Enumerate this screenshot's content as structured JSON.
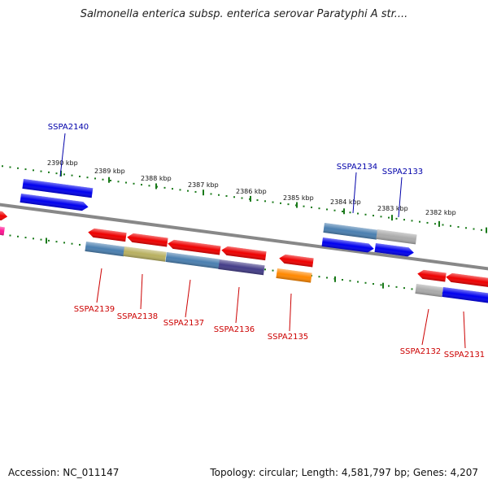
{
  "title": "Salmonella enterica subsp. enterica serovar Paratyphi A str....",
  "footer": {
    "accession": "Accession: NC_011147",
    "topology": "Topology: circular; Length: 4,581,797 bp; Genes: 4,207"
  },
  "colors": {
    "backbone": "#888888",
    "tick": "#1a7a1a",
    "label_forward": "#0000aa",
    "label_reverse": "#cc0000",
    "gene_blue": "#0000ee",
    "gene_red": "#ee0000",
    "gene_steel": "#4a7fb0",
    "gene_khaki": "#b8b060",
    "gene_gray": "#aaaaaa",
    "gene_purple": "#443d88",
    "gene_orange": "#ff8800",
    "gene_magenta": "#ff1493"
  },
  "scale_labels": [
    "2390 kbp",
    "2389 kbp",
    "2388 kbp",
    "2387 kbp",
    "2386 kbp",
    "2385 kbp",
    "2384 kbp",
    "2383 kbp",
    "2382 kbp"
  ],
  "gene_labels": {
    "forward": [
      "SSPA2140",
      "SSPA2134",
      "SSPA2133"
    ],
    "reverse": [
      "SSPA2139",
      "SSPA2138",
      "SSPA2137",
      "SSPA2136",
      "SSPA2135",
      "SSPA2132",
      "SSPA2131"
    ]
  }
}
